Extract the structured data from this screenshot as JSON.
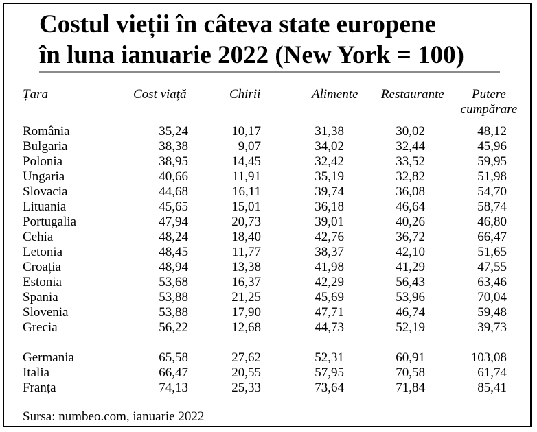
{
  "title": {
    "line1": "Costul vieții în câteva state europene",
    "line2": "în luna ianuarie 2022 (New York = 100)"
  },
  "columns": [
    "Țara",
    "Cost viață",
    "Chirii",
    "Alimente",
    "Restaurante",
    "Putere cumpărare"
  ],
  "column_headers": {
    "country": "Țara",
    "cost": "Cost viață",
    "rent": "Chirii",
    "food": "Alimente",
    "restaurants": "Restaurante",
    "power_line1": "Putere",
    "power_line2": "cumpărare"
  },
  "rows": [
    {
      "country": "România",
      "cost": "35,24",
      "rent": "10,17",
      "food": "31,38",
      "restaurants": "30,02",
      "power": "48,12"
    },
    {
      "country": "Bulgaria",
      "cost": "38,38",
      "rent": "9,07",
      "food": "34,02",
      "restaurants": "32,44",
      "power": "45,96"
    },
    {
      "country": "Polonia",
      "cost": "38,95",
      "rent": "14,45",
      "food": "32,42",
      "restaurants": "33,52",
      "power": "59,95"
    },
    {
      "country": "Ungaria",
      "cost": "40,66",
      "rent": "11,91",
      "food": "35,19",
      "restaurants": "32,82",
      "power": "51,98"
    },
    {
      "country": "Slovacia",
      "cost": "44,68",
      "rent": "16,11",
      "food": "39,74",
      "restaurants": "36,08",
      "power": "54,70"
    },
    {
      "country": "Lituania",
      "cost": "45,65",
      "rent": "15,01",
      "food": "36,18",
      "restaurants": "46,64",
      "power": "58,74"
    },
    {
      "country": "Portugalia",
      "cost": "47,94",
      "rent": "20,73",
      "food": "39,01",
      "restaurants": "40,26",
      "power": "46,80"
    },
    {
      "country": "Cehia",
      "cost": "48,24",
      "rent": "18,40",
      "food": "42,76",
      "restaurants": "36,72",
      "power": "66,47"
    },
    {
      "country": "Letonia",
      "cost": "48,45",
      "rent": "11,77",
      "food": "38,37",
      "restaurants": "42,10",
      "power": "51,65"
    },
    {
      "country": "Croația",
      "cost": "48,94",
      "rent": "13,38",
      "food": "41,98",
      "restaurants": "41,29",
      "power": "47,55"
    },
    {
      "country": "Estonia",
      "cost": "53,68",
      "rent": "16,37",
      "food": "42,29",
      "restaurants": "56,43",
      "power": "63,46"
    },
    {
      "country": "Spania",
      "cost": "53,88",
      "rent": "21,25",
      "food": "45,69",
      "restaurants": "53,96",
      "power": "70,04"
    },
    {
      "country": "Slovenia",
      "cost": "53,88",
      "rent": "17,90",
      "food": "47,71",
      "restaurants": "46,74",
      "power": "59,48"
    },
    {
      "country": "Grecia",
      "cost": "56,22",
      "rent": "12,68",
      "food": "44,73",
      "restaurants": "52,19",
      "power": "39,73"
    },
    {
      "country": "Germania",
      "cost": "65,58",
      "rent": "27,62",
      "food": "52,31",
      "restaurants": "60,91",
      "power": "103,08"
    },
    {
      "country": "Italia",
      "cost": "66,47",
      "rent": "20,55",
      "food": "57,95",
      "restaurants": "70,58",
      "power": "61,74"
    },
    {
      "country": "Franța",
      "cost": "74,13",
      "rent": "25,33",
      "food": "73,64",
      "restaurants": "71,84",
      "power": "85,41"
    }
  ],
  "source": "Sursa: numbeo.com, ianuarie 2022"
}
